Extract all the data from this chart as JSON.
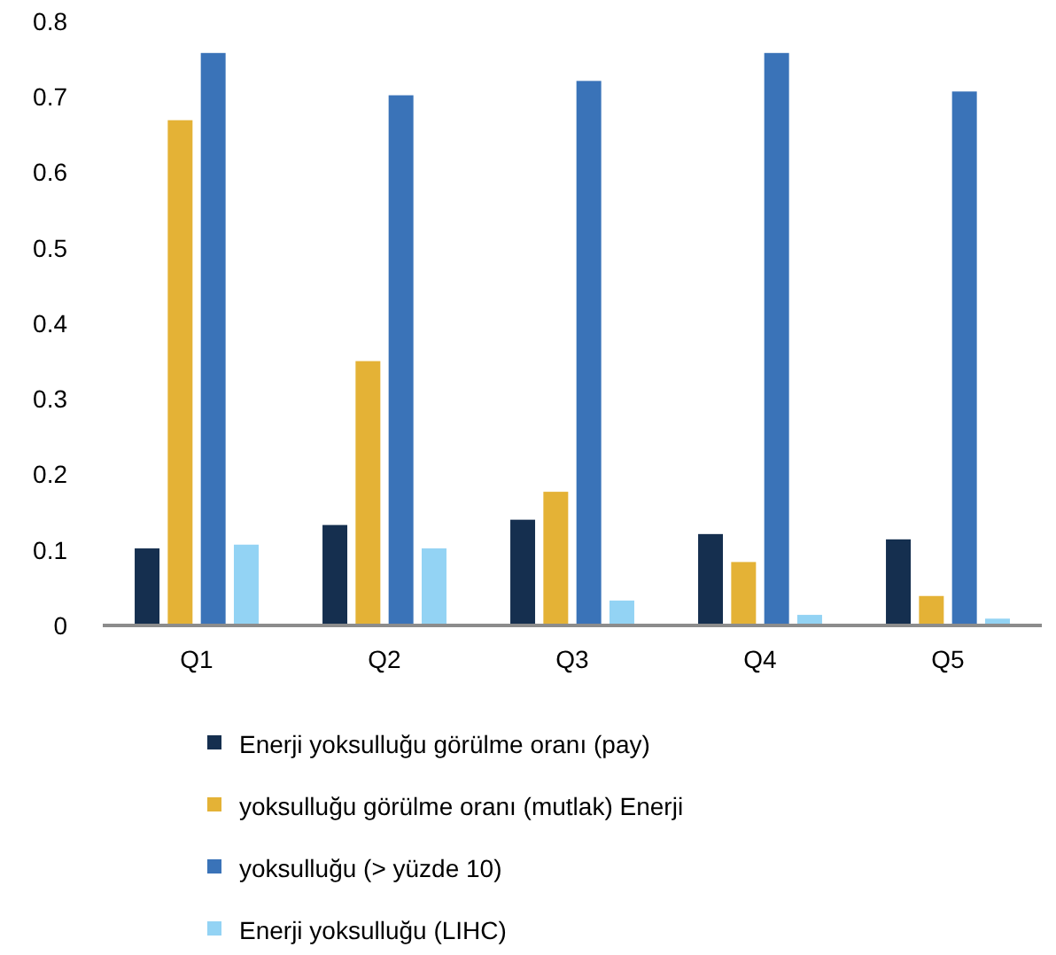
{
  "chart_data": {
    "type": "bar",
    "categories": [
      "Q1",
      "Q2",
      "Q3",
      "Q4",
      "Q5"
    ],
    "series": [
      {
        "name": "Enerji yoksulluğu görülme oranı (pay)",
        "color": "#152f4f",
        "values": [
          0.102,
          0.133,
          0.14,
          0.121,
          0.114
        ]
      },
      {
        "name": "yoksulluğu görülme oranı (mutlak) Enerji",
        "color": "#e4b236",
        "values": [
          0.669,
          0.35,
          0.177,
          0.084,
          0.039
        ]
      },
      {
        "name": "yoksulluğu (> yüzde 10)",
        "color": "#3a73b8",
        "values": [
          0.758,
          0.702,
          0.721,
          0.758,
          0.707
        ]
      },
      {
        "name": "Enerji yoksulluğu (LIHC)",
        "color": "#93d3f4",
        "values": [
          0.107,
          0.102,
          0.033,
          0.014,
          0.009
        ]
      }
    ],
    "ylim": [
      0,
      0.8
    ],
    "yticks": [
      0,
      0.1,
      0.2,
      0.3,
      0.4,
      0.5,
      0.6,
      0.7,
      0.8
    ],
    "grid": false,
    "legend": "bottom"
  }
}
